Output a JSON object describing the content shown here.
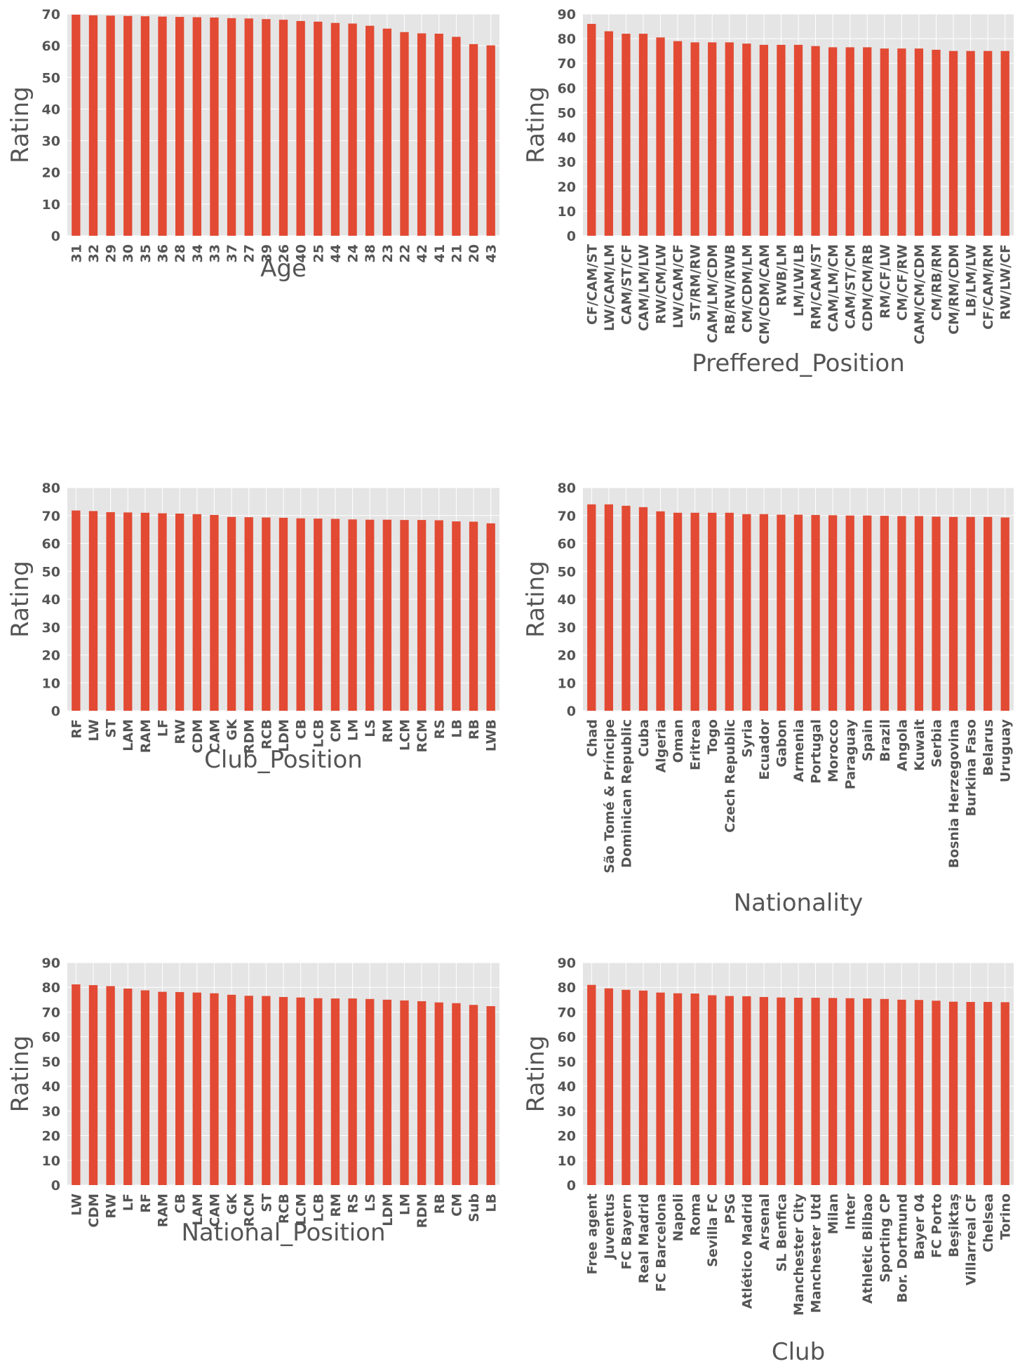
{
  "style": {
    "bar_color": "#e24a33",
    "plot_bg": "#e5e5e5",
    "grid_color": "#ffffff",
    "text_color": "#555555"
  },
  "chart_data": [
    {
      "type": "bar",
      "xlabel": "Age",
      "ylabel": "Rating",
      "ylim": [
        0,
        70
      ],
      "yticks": [
        0,
        10,
        20,
        30,
        40,
        50,
        60,
        70
      ],
      "grid": true,
      "categories": [
        "31",
        "32",
        "29",
        "30",
        "35",
        "36",
        "28",
        "34",
        "33",
        "37",
        "27",
        "39",
        "26",
        "40",
        "25",
        "44",
        "24",
        "38",
        "23",
        "22",
        "42",
        "41",
        "21",
        "20",
        "43"
      ],
      "values": [
        69.8,
        69.6,
        69.5,
        69.4,
        69.3,
        69.2,
        69.1,
        69.0,
        68.9,
        68.7,
        68.6,
        68.4,
        68.2,
        67.8,
        67.6,
        67.2,
        67.0,
        66.3,
        65.4,
        64.3,
        63.9,
        63.8,
        62.8,
        60.5,
        60.1
      ]
    },
    {
      "type": "bar",
      "xlabel": "Preffered_Position",
      "ylabel": "Rating",
      "ylim": [
        0,
        90
      ],
      "yticks": [
        0,
        10,
        20,
        30,
        40,
        50,
        60,
        70,
        80,
        90
      ],
      "grid": true,
      "categories": [
        "CF/CAM/ST",
        "LW/CAM/LM",
        "CAM/ST/CF",
        "CAM/LM/LW",
        "RW/CM/LW",
        "LW/CAM/CF",
        "ST/RM/RW",
        "CAM/LM/CDM",
        "RB/RW/RWB",
        "CM/CDM/LM",
        "CM/CDM/CAM",
        "RWB/LM",
        "LM/LW/LB",
        "RM/CAM/ST",
        "CAM/LM/CM",
        "CAM/ST/CM",
        "CDM/CM/RB",
        "RM/CF/LW",
        "CM/CF/RW",
        "CAM/CM/CDM",
        "CM/RB/RM",
        "CM/RM/CDM",
        "LB/LM/LW",
        "CF/CAM/RM",
        "RW/LW/CF"
      ],
      "values": [
        86,
        83,
        82,
        82,
        80.5,
        79,
        78.5,
        78.5,
        78.5,
        78,
        77.5,
        77.5,
        77.5,
        77,
        76.5,
        76.5,
        76.5,
        76,
        76,
        76,
        75.5,
        75,
        75,
        75,
        75
      ]
    },
    {
      "type": "bar",
      "xlabel": "Club_Position",
      "ylabel": "Rating",
      "ylim": [
        0,
        80
      ],
      "yticks": [
        0,
        10,
        20,
        30,
        40,
        50,
        60,
        70,
        80
      ],
      "grid": true,
      "categories": [
        "RF",
        "LW",
        "ST",
        "LAM",
        "RAM",
        "LF",
        "RW",
        "CDM",
        "CAM",
        "GK",
        "RDM",
        "RCB",
        "LDM",
        "CB",
        "LCB",
        "CM",
        "LM",
        "LS",
        "RM",
        "LCM",
        "RCM",
        "RS",
        "LB",
        "RB",
        "LWB"
      ],
      "values": [
        71.8,
        71.6,
        71.2,
        71.1,
        71.0,
        70.8,
        70.7,
        70.5,
        70.2,
        69.5,
        69.4,
        69.3,
        69.2,
        69.0,
        68.9,
        68.8,
        68.6,
        68.5,
        68.5,
        68.4,
        68.4,
        68.3,
        67.9,
        67.8,
        67.2
      ]
    },
    {
      "type": "bar",
      "xlabel": "Nationality",
      "ylabel": "Rating",
      "ylim": [
        0,
        80
      ],
      "yticks": [
        0,
        10,
        20,
        30,
        40,
        50,
        60,
        70,
        80
      ],
      "grid": true,
      "categories": [
        "Chad",
        "São Tomé & Príncipe",
        "Dominican Republic",
        "Cuba",
        "Algeria",
        "Oman",
        "Eritrea",
        "Togo",
        "Czech Republic",
        "Syria",
        "Ecuador",
        "Gabon",
        "Armenia",
        "Portugal",
        "Morocco",
        "Paraguay",
        "Spain",
        "Brazil",
        "Angola",
        "Kuwait",
        "Serbia",
        "Bosnia Herzegovina",
        "Burkina Faso",
        "Belarus",
        "Uruguay"
      ],
      "values": [
        74,
        74,
        73.5,
        73,
        71.5,
        71,
        71,
        71,
        71,
        70.5,
        70.5,
        70.3,
        70.3,
        70.2,
        70.1,
        70,
        70,
        69.9,
        69.8,
        69.8,
        69.6,
        69.5,
        69.5,
        69.5,
        69.3
      ]
    },
    {
      "type": "bar",
      "xlabel": "National_Position",
      "ylabel": "Rating",
      "ylim": [
        0,
        90
      ],
      "yticks": [
        0,
        10,
        20,
        30,
        40,
        50,
        60,
        70,
        80,
        90
      ],
      "grid": true,
      "categories": [
        "LW",
        "CDM",
        "RW",
        "LF",
        "RF",
        "RAM",
        "CB",
        "LAM",
        "CAM",
        "GK",
        "RCM",
        "ST",
        "RCB",
        "LCM",
        "LCB",
        "RM",
        "RS",
        "LS",
        "LDM",
        "LM",
        "RDM",
        "RB",
        "CM",
        "Sub",
        "LB"
      ],
      "values": [
        81.2,
        80.9,
        80.5,
        79.5,
        78.8,
        78.2,
        78.1,
        77.9,
        77.6,
        77.0,
        76.6,
        76.5,
        76.1,
        75.9,
        75.6,
        75.5,
        75.5,
        75.3,
        75.0,
        74.7,
        74.4,
        73.9,
        73.6,
        72.9,
        72.4
      ]
    },
    {
      "type": "bar",
      "xlabel": "Club",
      "ylabel": "Rating",
      "ylim": [
        0,
        90
      ],
      "yticks": [
        0,
        10,
        20,
        30,
        40,
        50,
        60,
        70,
        80,
        90
      ],
      "grid": true,
      "categories": [
        "Free agent",
        "Juventus",
        "FC Bayern",
        "Real Madrid",
        "FC Barcelona",
        "Napoli",
        "Roma",
        "Sevilla FC",
        "PSG",
        "Atlético Madrid",
        "Arsenal",
        "SL Benfica",
        "Manchester City",
        "Manchester Utd",
        "Milan",
        "Inter",
        "Athletic Bilbao",
        "Sporting CP",
        "Bor. Dortmund",
        "Bayer 04",
        "FC Porto",
        "Beşiktaş",
        "Villarreal CF",
        "Chelsea",
        "Torino"
      ],
      "values": [
        81,
        79.6,
        79,
        78.7,
        77.9,
        77.6,
        77.5,
        76.8,
        76.5,
        76.4,
        76.1,
        75.9,
        75.8,
        75.8,
        75.7,
        75.6,
        75.5,
        75.3,
        75.0,
        74.9,
        74.6,
        74.2,
        74.1,
        74.1,
        74.0
      ]
    }
  ]
}
